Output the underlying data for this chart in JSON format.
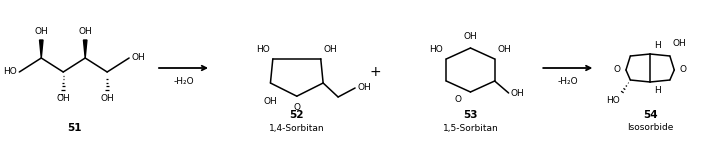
{
  "fig_width": 7.09,
  "fig_height": 1.41,
  "dpi": 100,
  "background": "#ffffff",
  "lw": 1.1,
  "fs_label": 6.5,
  "fs_num": 7.5,
  "fs_name": 6.5,
  "fs_plus": 10,
  "color": "#000000",
  "compound_numbers": {
    "51": "51",
    "52": "52",
    "53": "53",
    "54": "54"
  },
  "compound_names": {
    "52": "1,4-Sorbitan",
    "53": "1,5-Sorbitan",
    "54": "Isosorbide"
  },
  "arrow1_label": "-H₂O",
  "arrow2_label": "-H₂O",
  "plus": "+"
}
